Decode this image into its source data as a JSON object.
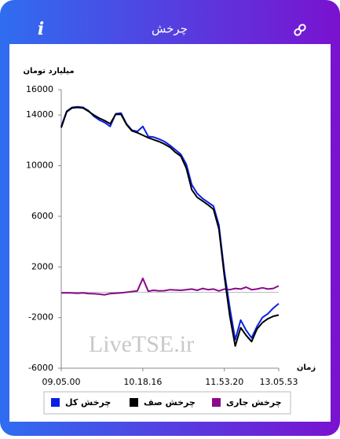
{
  "header": {
    "title": "چرخش",
    "info": "i"
  },
  "chart_data": {
    "type": "line",
    "y_label": "میلیارد تومان",
    "x_label": "زمان",
    "watermark": "LiveTSE.ir",
    "ylim": [
      -6000,
      16000
    ],
    "yticks": [
      -6000,
      -2000,
      2000,
      6000,
      10000,
      14000,
      16000
    ],
    "grid": false,
    "categories": [
      "09.05.00",
      null,
      null,
      null,
      null,
      null,
      null,
      null,
      null,
      null,
      null,
      null,
      null,
      null,
      null,
      "10.18.16",
      null,
      null,
      null,
      null,
      null,
      null,
      null,
      null,
      null,
      null,
      null,
      null,
      null,
      null,
      "11.53.20",
      null,
      null,
      null,
      null,
      null,
      null,
      null,
      null,
      null,
      "13.05.53"
    ],
    "series": [
      {
        "name": "چرخش کل",
        "color": "#0a1fe6",
        "values": [
          13100,
          14300,
          14600,
          14650,
          14600,
          14350,
          13900,
          13600,
          13400,
          13100,
          14100,
          14150,
          13300,
          12800,
          12700,
          13100,
          12300,
          12250,
          12100,
          11900,
          11600,
          11250,
          10900,
          10100,
          8500,
          7800,
          7400,
          7100,
          6800,
          5300,
          1600,
          -1250,
          -3750,
          -2200,
          -3000,
          -3600,
          -2700,
          -2000,
          -1700,
          -1250,
          -900
        ]
      },
      {
        "name": "چرخش صف",
        "color": "#000000",
        "values": [
          13000,
          14250,
          14560,
          14600,
          14550,
          14300,
          14000,
          13750,
          13550,
          13300,
          14050,
          14050,
          13250,
          12750,
          12600,
          12400,
          12200,
          12050,
          11900,
          11700,
          11450,
          11050,
          10750,
          9800,
          8100,
          7500,
          7200,
          6900,
          6550,
          5000,
          1250,
          -1900,
          -4250,
          -2800,
          -3400,
          -3900,
          -2900,
          -2400,
          -2100,
          -1900,
          -1800
        ]
      },
      {
        "name": "چرخش جاری",
        "color": "#8b0a8b",
        "values": [
          -50,
          -40,
          -60,
          -80,
          -50,
          -100,
          -120,
          -150,
          -200,
          -100,
          -80,
          -50,
          0,
          50,
          100,
          1100,
          80,
          150,
          100,
          120,
          200,
          180,
          150,
          200,
          250,
          150,
          300,
          200,
          250,
          100,
          250,
          200,
          300,
          250,
          400,
          200,
          250,
          350,
          250,
          300,
          500
        ]
      }
    ]
  }
}
